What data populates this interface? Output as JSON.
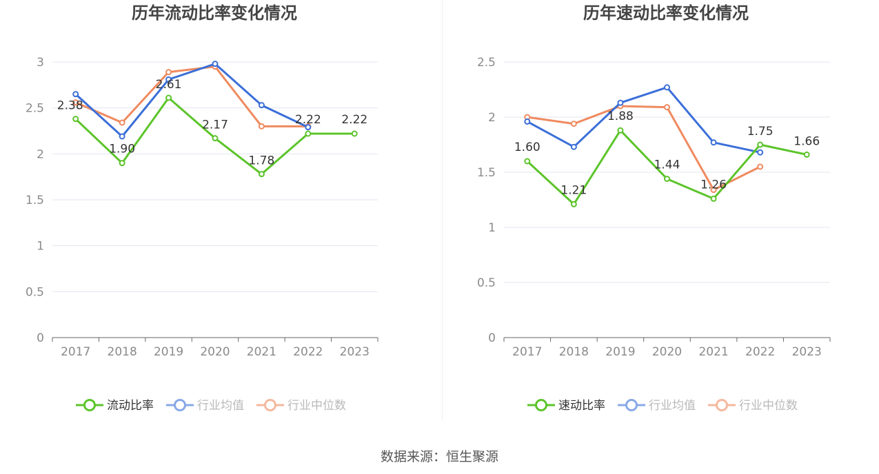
{
  "colors": {
    "company": "#5cc42a",
    "avg": "#3b6fd8",
    "median": "#ef8a5f",
    "grid": "#e3e5ef",
    "axis": "#666666"
  },
  "source": "数据来源：恒生聚源",
  "chart_data": [
    {
      "type": "line",
      "title": "历年流动比率变化情况",
      "categories": [
        "2017",
        "2018",
        "2019",
        "2020",
        "2021",
        "2022",
        "2023"
      ],
      "ylim": [
        0,
        3
      ],
      "yticks": [
        "0",
        "0.5",
        "1",
        "1.5",
        "2",
        "2.5",
        "3"
      ],
      "grid": true,
      "legend_position": "bottom",
      "series": [
        {
          "name": "流动比率",
          "key": "company",
          "values": [
            2.38,
            1.9,
            2.61,
            2.17,
            1.78,
            2.22,
            2.22
          ],
          "labels": [
            "2.38",
            "1.90",
            "2.61",
            "2.17",
            "1.78",
            "2.22",
            "2.22"
          ]
        },
        {
          "name": "行业均值",
          "key": "avg",
          "values": [
            2.65,
            2.19,
            2.81,
            2.98,
            2.53,
            2.29,
            null
          ]
        },
        {
          "name": "行业中位数",
          "key": "median",
          "values": [
            2.56,
            2.34,
            2.89,
            2.95,
            2.3,
            2.3,
            null
          ]
        }
      ]
    },
    {
      "type": "line",
      "title": "历年速动比率变化情况",
      "categories": [
        "2017",
        "2018",
        "2019",
        "2020",
        "2021",
        "2022",
        "2023"
      ],
      "ylim": [
        0,
        2.5
      ],
      "yticks": [
        "0",
        "0.5",
        "1",
        "1.5",
        "2",
        "2.5"
      ],
      "grid": true,
      "legend_position": "bottom",
      "series": [
        {
          "name": "速动比率",
          "key": "company",
          "values": [
            1.6,
            1.21,
            1.88,
            1.44,
            1.26,
            1.75,
            1.66
          ],
          "labels": [
            "1.60",
            "1.21",
            "1.88",
            "1.44",
            "1.26",
            "1.75",
            "1.66"
          ]
        },
        {
          "name": "行业均值",
          "key": "avg",
          "values": [
            1.96,
            1.73,
            2.13,
            2.27,
            1.77,
            1.68,
            null
          ]
        },
        {
          "name": "行业中位数",
          "key": "median",
          "values": [
            2.0,
            1.94,
            2.1,
            2.09,
            1.34,
            1.55,
            null
          ]
        }
      ]
    }
  ]
}
